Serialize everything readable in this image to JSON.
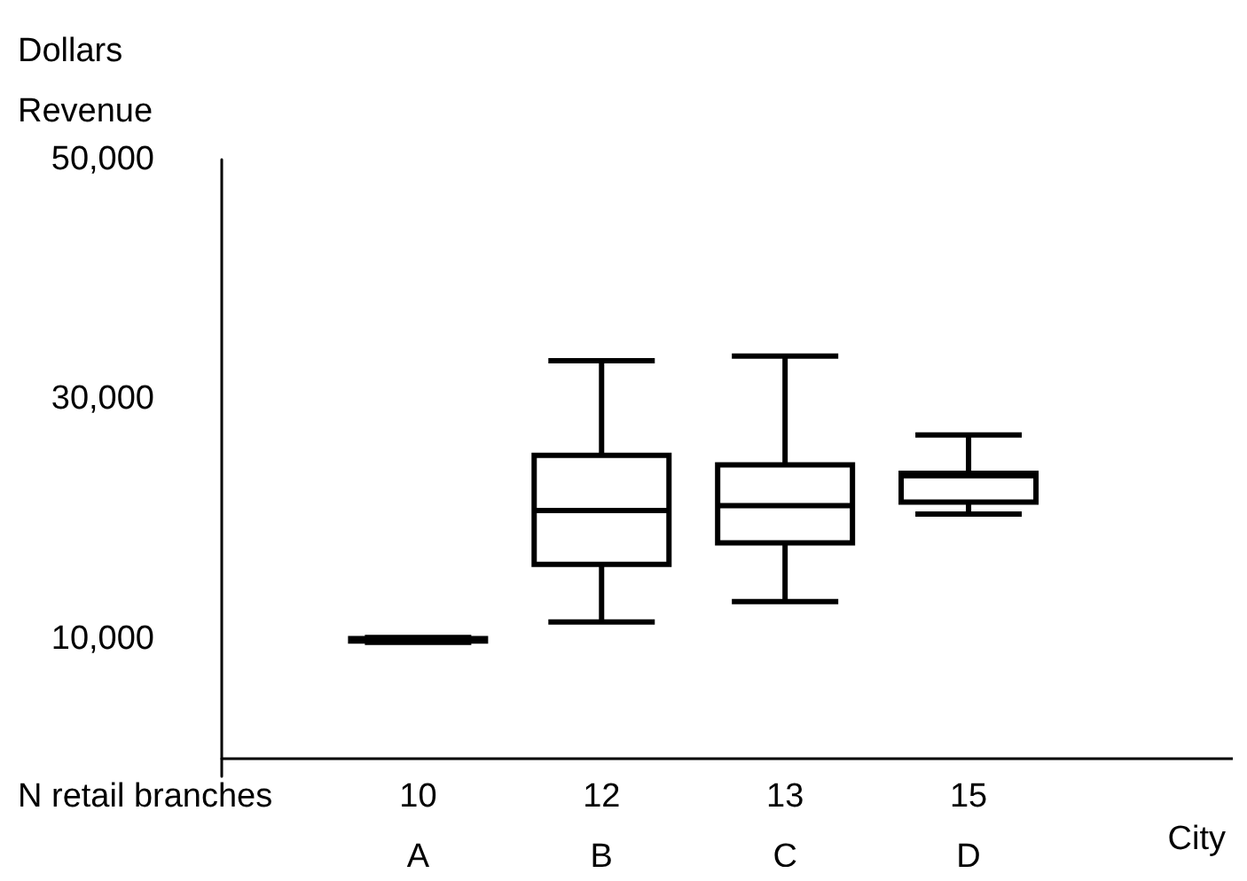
{
  "chart_data": {
    "type": "box",
    "ylabel": "Dollars Revenue",
    "xlabel": "City",
    "categories": [
      "A",
      "B",
      "C",
      "D"
    ],
    "boxes": [
      {
        "low": 9700,
        "q1": 9800,
        "median": 9900,
        "q3": 10000,
        "high": 10100
      },
      {
        "low": 11400,
        "q1": 16200,
        "median": 20700,
        "q3": 25300,
        "high": 33200
      },
      {
        "low": 13100,
        "q1": 18000,
        "median": 21100,
        "q3": 24500,
        "high": 33600
      },
      {
        "low": 20400,
        "q1": 21400,
        "median": 23600,
        "q3": 23800,
        "high": 27000
      }
    ],
    "color": "#000000",
    "ylim": [
      -1500,
      50000
    ],
    "yticks": [
      {
        "value": 10000,
        "label": "10,000"
      },
      {
        "value": 30000,
        "label": "30,000"
      },
      {
        "value": 50000,
        "label": "50,000"
      }
    ],
    "grid": false,
    "annotations": [
      "N retail branches",
      "10",
      "12",
      "13",
      "15"
    ]
  }
}
